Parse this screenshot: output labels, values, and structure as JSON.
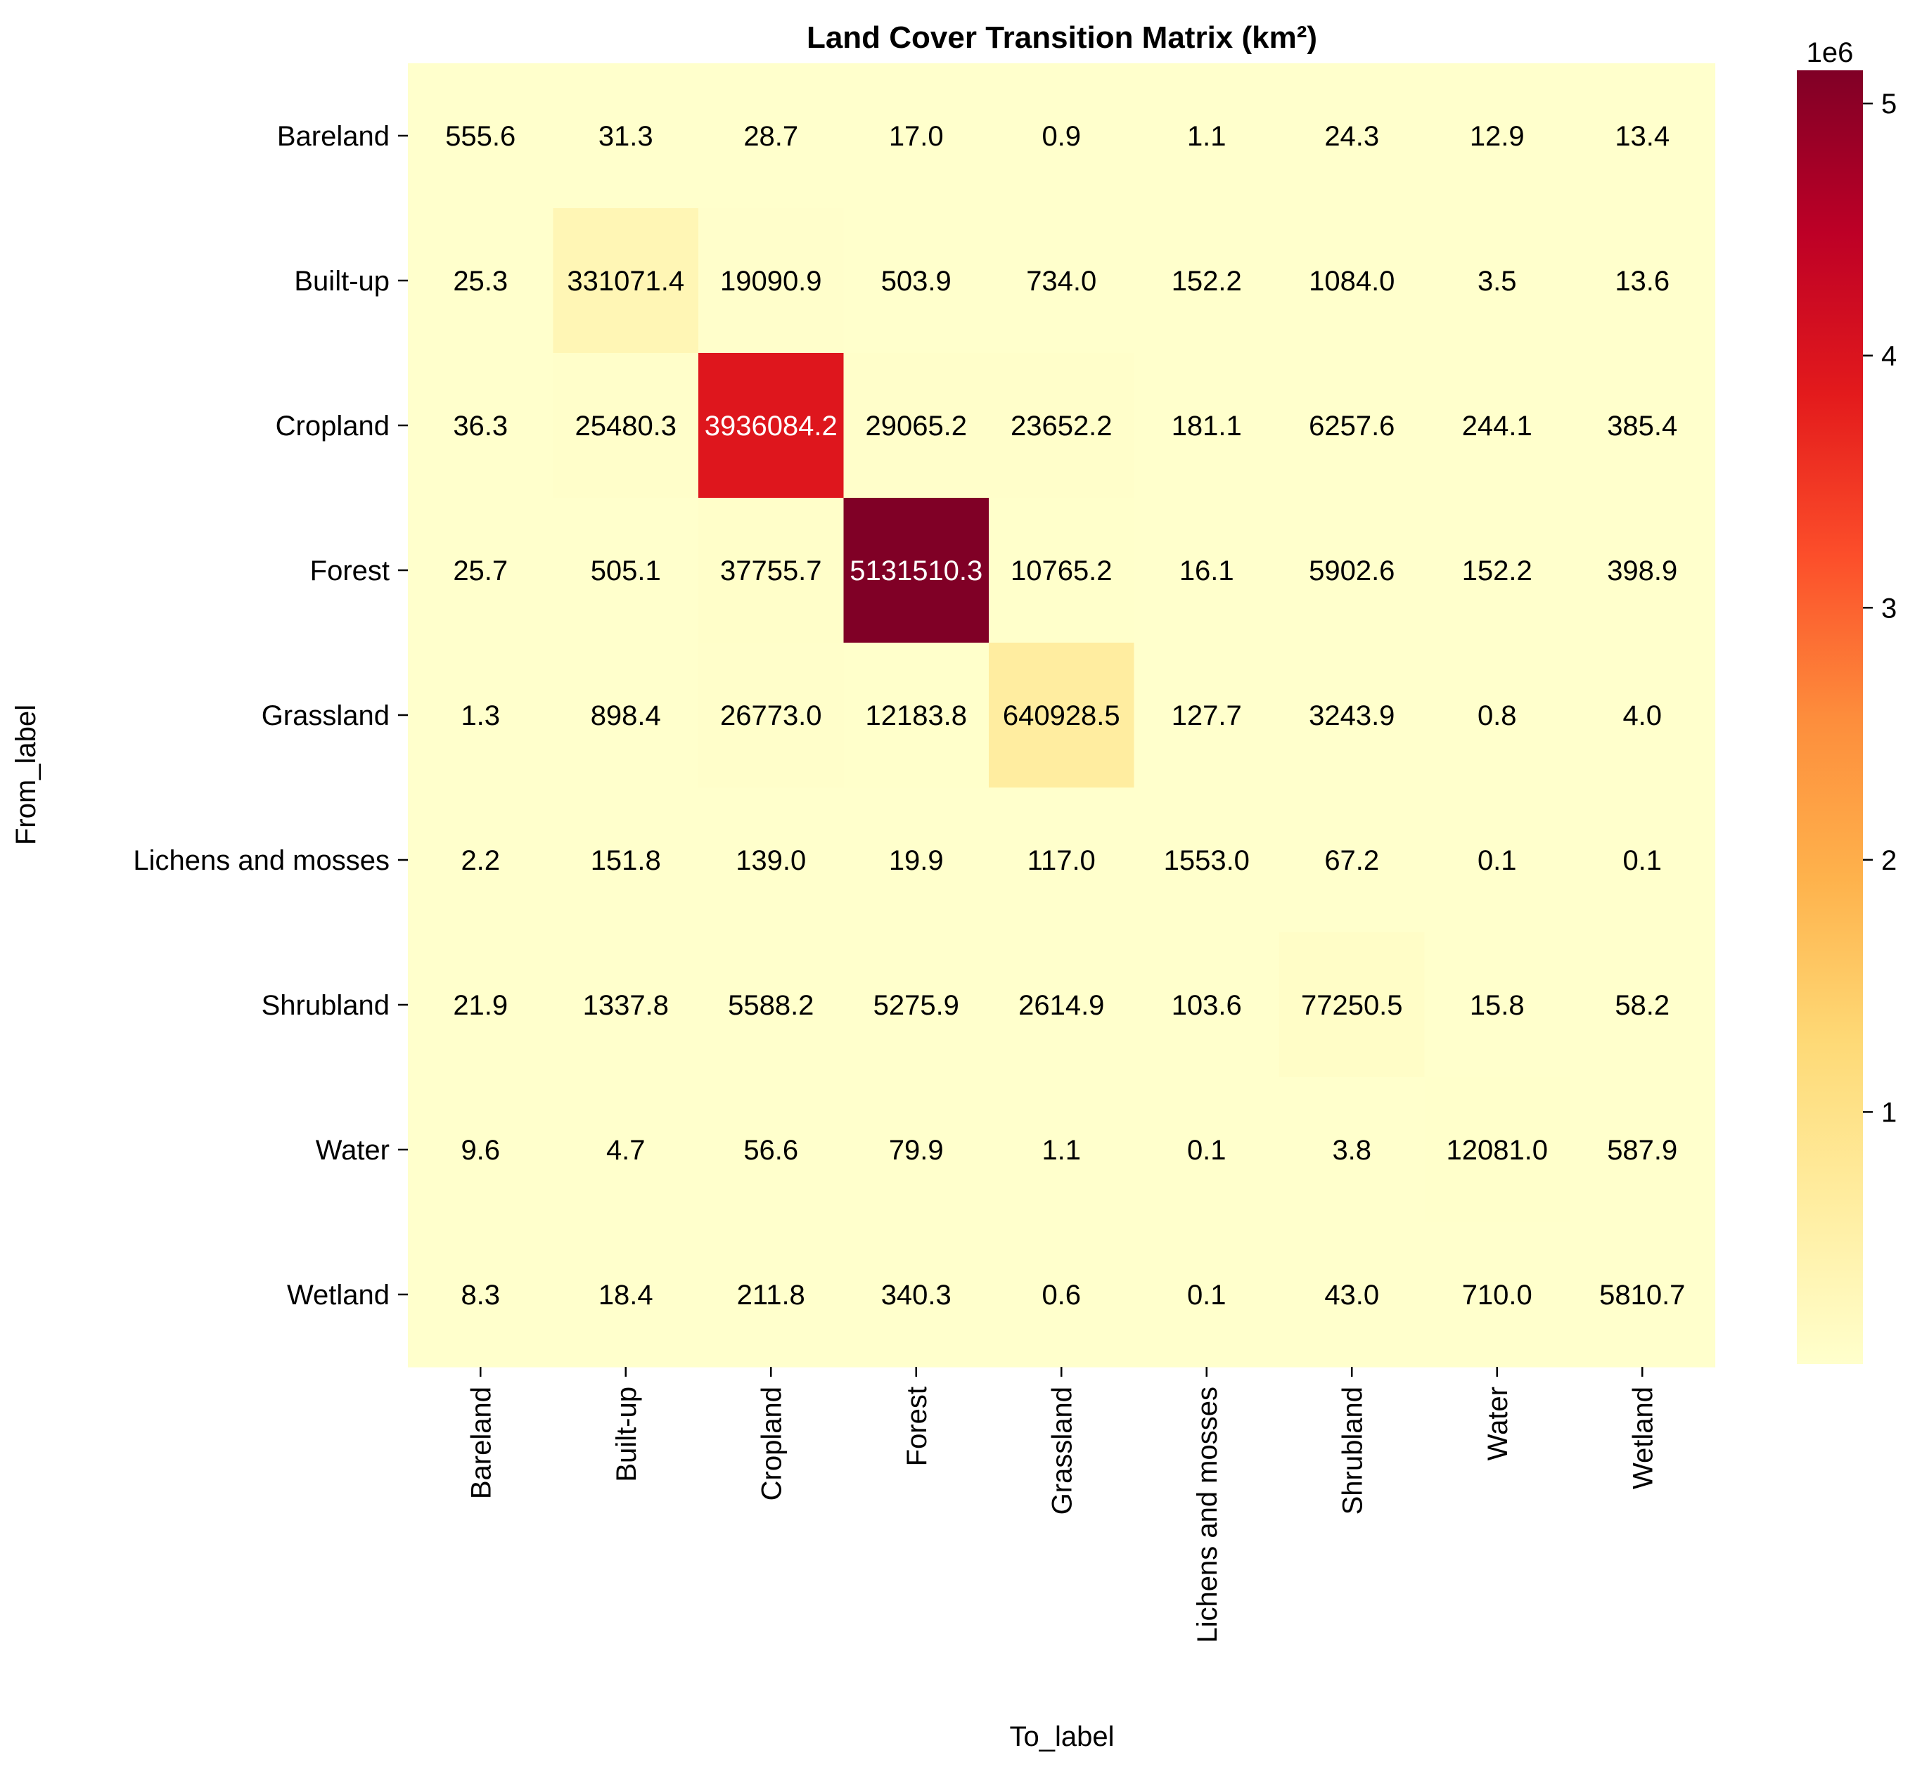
{
  "chart_data": {
    "type": "heatmap",
    "title": "Land Cover Transition Matrix (km²)",
    "xlabel": "To_label",
    "ylabel": "From_label",
    "rows": [
      "Bareland",
      "Built-up",
      "Cropland",
      "Forest",
      "Grassland",
      "Lichens and mosses",
      "Shrubland",
      "Water",
      "Wetland"
    ],
    "columns": [
      "Bareland",
      "Built-up",
      "Cropland",
      "Forest",
      "Grassland",
      "Lichens and mosses",
      "Shrubland",
      "Water",
      "Wetland"
    ],
    "values": [
      [
        555.6,
        31.3,
        28.7,
        17.0,
        0.9,
        1.1,
        24.3,
        12.9,
        13.4
      ],
      [
        25.3,
        331071.4,
        19090.9,
        503.9,
        734.0,
        152.2,
        1084.0,
        3.5,
        13.6
      ],
      [
        36.3,
        25480.3,
        3936084.2,
        29065.2,
        23652.2,
        181.1,
        6257.6,
        244.1,
        385.4
      ],
      [
        25.7,
        505.1,
        37755.7,
        5131510.3,
        10765.2,
        16.1,
        5902.6,
        152.2,
        398.9
      ],
      [
        1.3,
        898.4,
        26773.0,
        12183.8,
        640928.5,
        127.7,
        3243.9,
        0.8,
        4.0
      ],
      [
        2.2,
        151.8,
        139.0,
        19.9,
        117.0,
        1553.0,
        67.2,
        0.1,
        0.1
      ],
      [
        21.9,
        1337.8,
        5588.2,
        5275.9,
        2614.9,
        103.6,
        77250.5,
        15.8,
        58.2
      ],
      [
        9.6,
        4.7,
        56.6,
        79.9,
        1.1,
        0.1,
        3.8,
        12081.0,
        587.9
      ],
      [
        8.3,
        18.4,
        211.8,
        340.3,
        0.6,
        0.1,
        43.0,
        710.0,
        5810.7
      ]
    ],
    "colormap": "YlOrRd",
    "color_range": [
      0.1,
      5131510.3
    ],
    "colorbar": {
      "ticks": [
        1,
        2,
        3,
        4,
        5
      ],
      "tick_labels": [
        "1",
        "2",
        "3",
        "4",
        "5"
      ],
      "multiplier": "1e6"
    },
    "grid": false
  }
}
